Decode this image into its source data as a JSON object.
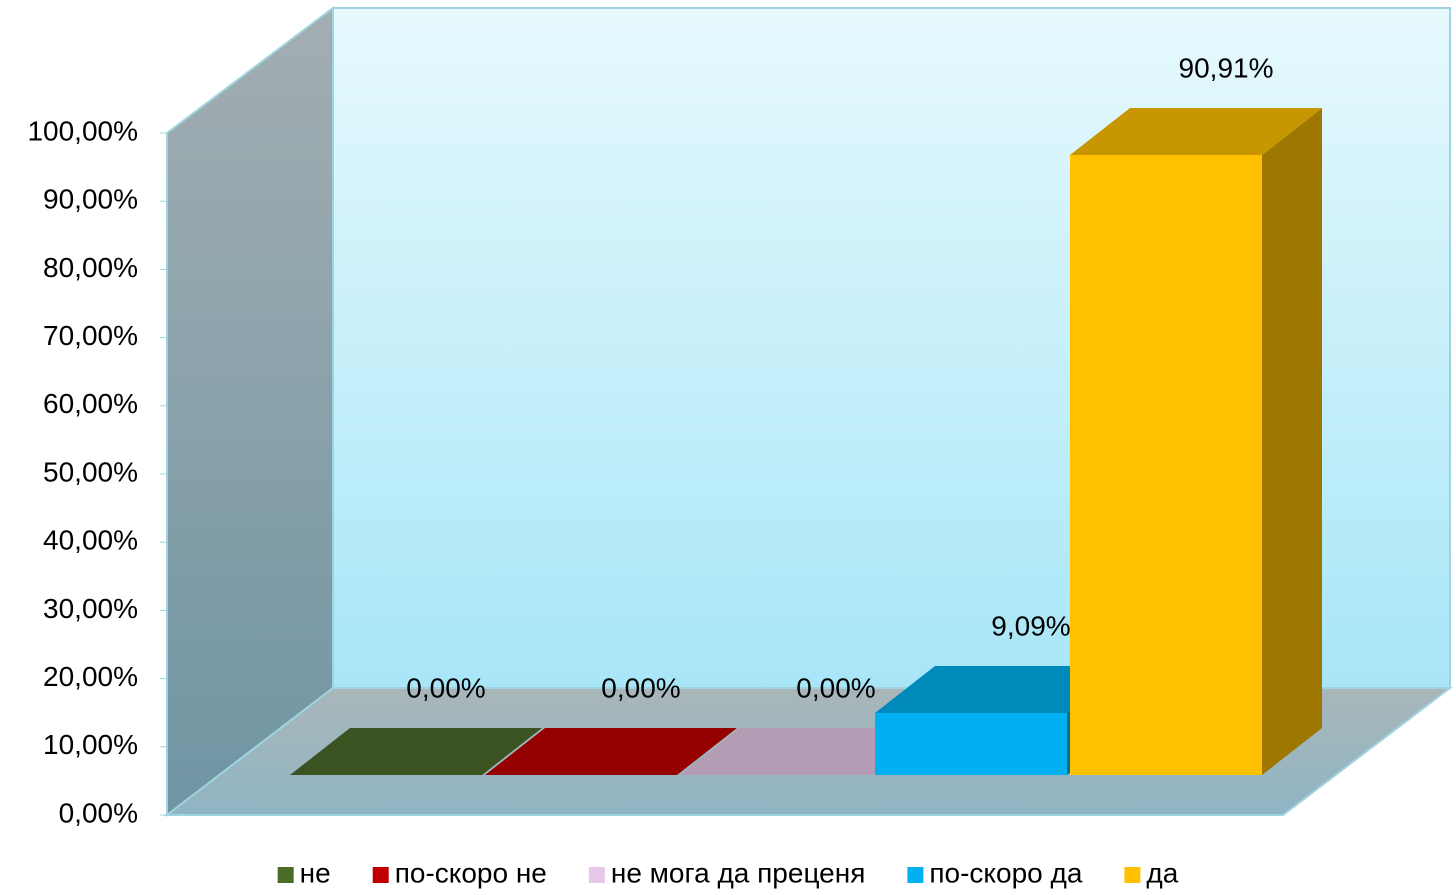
{
  "chart_data": {
    "type": "bar",
    "series": [
      {
        "name": "не",
        "color": "#4a6b2a",
        "values": [
          0
        ],
        "value_labels": [
          "0,00%"
        ]
      },
      {
        "name": "по-скоро не",
        "color": "#c00000",
        "values": [
          0
        ],
        "value_labels": [
          "0,00%"
        ]
      },
      {
        "name": "не мога да преценя",
        "color": "#e8c8e8",
        "values": [
          0
        ],
        "value_labels": [
          "0,00%"
        ]
      },
      {
        "name": "по-скоро да",
        "color": "#00b0f0",
        "values": [
          9.09
        ],
        "value_labels": [
          "9,09%"
        ]
      },
      {
        "name": "да",
        "color": "#ffc000",
        "values": [
          90.91
        ],
        "value_labels": [
          "90,91%"
        ]
      }
    ],
    "ylim": [
      0,
      100
    ],
    "yticks": [
      {
        "value": 0,
        "label": "0,00%"
      },
      {
        "value": 10,
        "label": "10,00%"
      },
      {
        "value": 20,
        "label": "20,00%"
      },
      {
        "value": 30,
        "label": "30,00%"
      },
      {
        "value": 40,
        "label": "40,00%"
      },
      {
        "value": 50,
        "label": "50,00%"
      },
      {
        "value": 60,
        "label": "60,00%"
      },
      {
        "value": 70,
        "label": "70,00%"
      },
      {
        "value": 80,
        "label": "80,00%"
      },
      {
        "value": 90,
        "label": "90,00%"
      },
      {
        "value": 100,
        "label": "100,00%"
      }
    ],
    "legend": "bottom"
  }
}
